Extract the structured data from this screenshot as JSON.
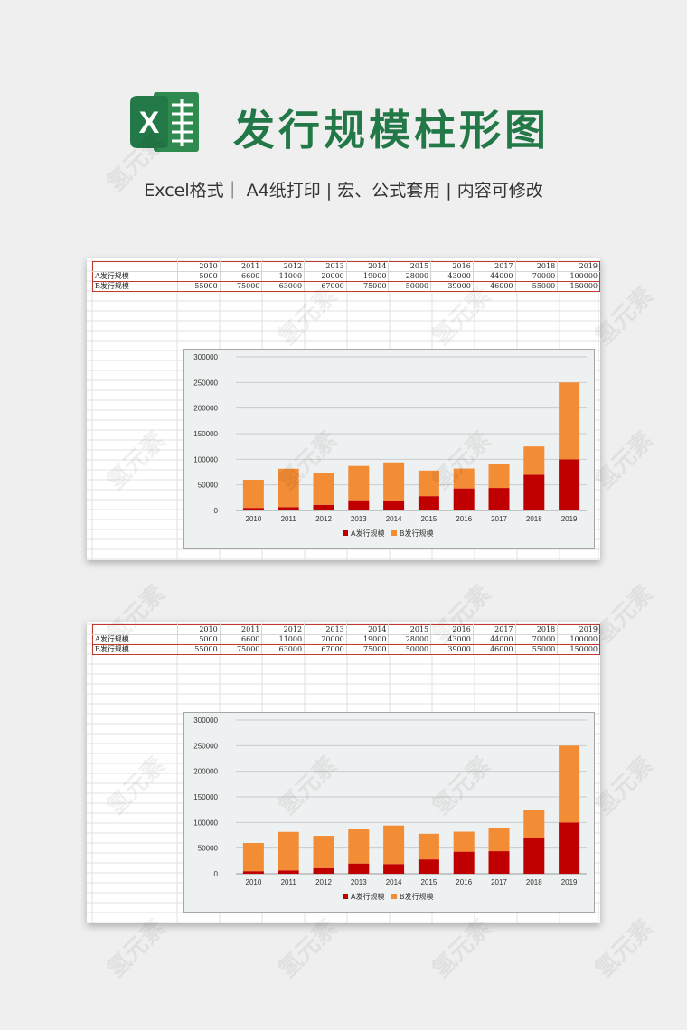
{
  "header": {
    "title": "发行规模柱形图",
    "subtitle": "Excel格式｜ A4纸打印 | 宏、公式套用 | 内容可修改",
    "logo_letter": "X"
  },
  "table": {
    "years": [
      "2010",
      "2011",
      "2012",
      "2013",
      "2014",
      "2015",
      "2016",
      "2017",
      "2018",
      "2019"
    ],
    "rows": [
      {
        "label": "A发行规模",
        "values": [
          "5000",
          "6600",
          "11000",
          "20000",
          "19000",
          "28000",
          "43000",
          "44000",
          "70000",
          "100000"
        ]
      },
      {
        "label": "B发行规模",
        "values": [
          "55000",
          "75000",
          "63000",
          "67000",
          "75000",
          "50000",
          "39000",
          "46000",
          "55000",
          "150000"
        ]
      }
    ]
  },
  "chart_data": {
    "type": "bar",
    "stacked": true,
    "categories": [
      "2010",
      "2011",
      "2012",
      "2013",
      "2014",
      "2015",
      "2016",
      "2017",
      "2018",
      "2019"
    ],
    "series": [
      {
        "name": "A发行规模",
        "values": [
          5000,
          6600,
          11000,
          20000,
          19000,
          28000,
          43000,
          44000,
          70000,
          100000
        ]
      },
      {
        "name": "B发行规模",
        "values": [
          55000,
          75000,
          63000,
          67000,
          75000,
          50000,
          39000,
          46000,
          55000,
          150000
        ]
      }
    ],
    "yticks": [
      "300000",
      "250000",
      "200000",
      "150000",
      "100000",
      "50000",
      "0"
    ],
    "ylim": [
      0,
      300000
    ],
    "grid": true,
    "legend_position": "bottom",
    "colors": [
      "#c00000",
      "#f28c35"
    ]
  },
  "watermark": "氢元素"
}
